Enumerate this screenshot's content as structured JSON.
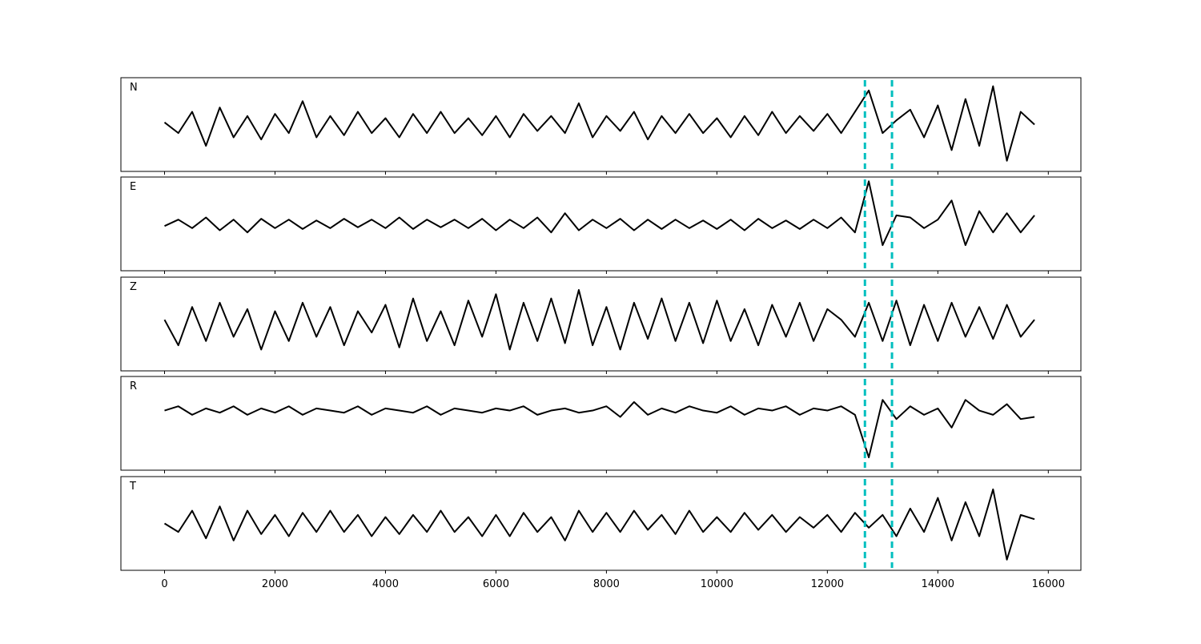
{
  "chart_data": [
    {
      "type": "line",
      "label": "N",
      "color": "#000000",
      "x": [
        0,
        250,
        500,
        750,
        1000,
        1250,
        1500,
        1750,
        2000,
        2250,
        2500,
        2750,
        3000,
        3250,
        3500,
        3750,
        4000,
        4250,
        4500,
        4750,
        5000,
        5250,
        5500,
        5750,
        6000,
        6250,
        6500,
        6750,
        7000,
        7250,
        7500,
        7750,
        8000,
        8250,
        8500,
        8750,
        9000,
        9250,
        9500,
        9750,
        10000,
        10250,
        10500,
        10750,
        11000,
        11250,
        11500,
        11750,
        12000,
        12250,
        12500,
        12750,
        13000,
        13250,
        13500,
        13750,
        14000,
        14250,
        14500,
        14750,
        15000,
        15250,
        15500,
        15750
      ],
      "values": [
        0.05,
        -0.2,
        0.3,
        -0.5,
        0.4,
        -0.3,
        0.2,
        -0.35,
        0.25,
        -0.2,
        0.55,
        -0.3,
        0.2,
        -0.25,
        0.3,
        -0.2,
        0.15,
        -0.3,
        0.25,
        -0.2,
        0.3,
        -0.2,
        0.15,
        -0.25,
        0.2,
        -0.3,
        0.25,
        -0.15,
        0.2,
        -0.2,
        0.5,
        -0.3,
        0.2,
        -0.15,
        0.3,
        -0.35,
        0.2,
        -0.2,
        0.25,
        -0.2,
        0.15,
        -0.3,
        0.2,
        -0.25,
        0.3,
        -0.2,
        0.2,
        -0.15,
        0.25,
        -0.2,
        0.3,
        0.8,
        -0.2,
        0.1,
        0.35,
        -0.3,
        0.45,
        -0.6,
        0.6,
        -0.5,
        0.9,
        -0.85,
        0.3,
        0.0
      ],
      "xlim": [
        -790,
        16590
      ],
      "ylim": [
        -1.1,
        1.1
      ],
      "vlines": [
        12680,
        13170
      ],
      "vline_color": "#00bfbf"
    },
    {
      "type": "line",
      "label": "E",
      "color": "#000000",
      "x": [
        0,
        250,
        500,
        750,
        1000,
        1250,
        1500,
        1750,
        2000,
        2250,
        2500,
        2750,
        3000,
        3250,
        3500,
        3750,
        4000,
        4250,
        4500,
        4750,
        5000,
        5250,
        5500,
        5750,
        6000,
        6250,
        6500,
        6750,
        7000,
        7250,
        7500,
        7750,
        8000,
        8250,
        8500,
        8750,
        9000,
        9250,
        9500,
        9750,
        10000,
        10250,
        10500,
        10750,
        11000,
        11250,
        11500,
        11750,
        12000,
        12250,
        12500,
        12750,
        13000,
        13250,
        13500,
        13750,
        14000,
        14250,
        14500,
        14750,
        15000,
        15250,
        15500,
        15750
      ],
      "values": [
        -0.05,
        0.1,
        -0.1,
        0.15,
        -0.15,
        0.1,
        -0.2,
        0.12,
        -0.1,
        0.1,
        -0.12,
        0.08,
        -0.1,
        0.12,
        -0.08,
        0.1,
        -0.1,
        0.15,
        -0.12,
        0.1,
        -0.08,
        0.1,
        -0.1,
        0.12,
        -0.15,
        0.1,
        -0.1,
        0.15,
        -0.2,
        0.25,
        -0.15,
        0.1,
        -0.1,
        0.12,
        -0.15,
        0.1,
        -0.12,
        0.1,
        -0.1,
        0.08,
        -0.12,
        0.1,
        -0.15,
        0.12,
        -0.1,
        0.08,
        -0.12,
        0.1,
        -0.1,
        0.15,
        -0.2,
        1.0,
        -0.5,
        0.2,
        0.15,
        -0.1,
        0.1,
        0.55,
        -0.5,
        0.3,
        -0.2,
        0.25,
        -0.2,
        0.2
      ],
      "xlim": [
        -790,
        16590
      ],
      "ylim": [
        -1.1,
        1.1
      ],
      "vlines": [
        12680,
        13170
      ],
      "vline_color": "#00bfbf"
    },
    {
      "type": "line",
      "label": "Z",
      "color": "#000000",
      "x": [
        0,
        250,
        500,
        750,
        1000,
        1250,
        1500,
        1750,
        2000,
        2250,
        2500,
        2750,
        3000,
        3250,
        3500,
        3750,
        4000,
        4250,
        4500,
        4750,
        5000,
        5250,
        5500,
        5750,
        6000,
        6250,
        6500,
        6750,
        7000,
        7250,
        7500,
        7750,
        8000,
        8250,
        8500,
        8750,
        9000,
        9250,
        9500,
        9750,
        10000,
        10250,
        10500,
        10750,
        11000,
        11250,
        11500,
        11750,
        12000,
        12250,
        12500,
        12750,
        13000,
        13250,
        13500,
        13750,
        14000,
        14250,
        14500,
        14750,
        15000,
        15250,
        15500,
        15750
      ],
      "values": [
        0.1,
        -0.5,
        0.4,
        -0.4,
        0.5,
        -0.3,
        0.35,
        -0.6,
        0.3,
        -0.4,
        0.5,
        -0.3,
        0.4,
        -0.5,
        0.3,
        -0.2,
        0.45,
        -0.55,
        0.6,
        -0.4,
        0.3,
        -0.5,
        0.55,
        -0.3,
        0.7,
        -0.6,
        0.5,
        -0.4,
        0.6,
        -0.45,
        0.8,
        -0.5,
        0.4,
        -0.6,
        0.5,
        -0.35,
        0.6,
        -0.4,
        0.5,
        -0.45,
        0.55,
        -0.4,
        0.35,
        -0.5,
        0.45,
        -0.3,
        0.5,
        -0.4,
        0.35,
        0.1,
        -0.3,
        0.5,
        -0.4,
        0.55,
        -0.5,
        0.45,
        -0.4,
        0.5,
        -0.3,
        0.4,
        -0.35,
        0.45,
        -0.3,
        0.1
      ],
      "xlim": [
        -790,
        16590
      ],
      "ylim": [
        -1.1,
        1.1
      ],
      "vlines": [
        12680,
        13170
      ],
      "vline_color": "#00bfbf"
    },
    {
      "type": "line",
      "label": "R",
      "color": "#000000",
      "x": [
        0,
        250,
        500,
        750,
        1000,
        1250,
        1500,
        1750,
        2000,
        2250,
        2500,
        2750,
        3000,
        3250,
        3500,
        3750,
        4000,
        4250,
        4500,
        4750,
        5000,
        5250,
        5500,
        5750,
        6000,
        6250,
        6500,
        6750,
        7000,
        7250,
        7500,
        7750,
        8000,
        8250,
        8500,
        8750,
        9000,
        9250,
        9500,
        9750,
        10000,
        10250,
        10500,
        10750,
        11000,
        11250,
        11500,
        11750,
        12000,
        12250,
        12500,
        12750,
        13000,
        13250,
        13500,
        13750,
        14000,
        14250,
        14500,
        14750,
        15000,
        15250,
        15500,
        15750
      ],
      "values": [
        0.3,
        0.4,
        0.2,
        0.35,
        0.25,
        0.4,
        0.2,
        0.35,
        0.25,
        0.4,
        0.2,
        0.35,
        0.3,
        0.25,
        0.4,
        0.2,
        0.35,
        0.3,
        0.25,
        0.4,
        0.2,
        0.35,
        0.3,
        0.25,
        0.35,
        0.3,
        0.4,
        0.2,
        0.3,
        0.35,
        0.25,
        0.3,
        0.4,
        0.15,
        0.5,
        0.2,
        0.35,
        0.25,
        0.4,
        0.3,
        0.25,
        0.4,
        0.2,
        0.35,
        0.3,
        0.4,
        0.2,
        0.35,
        0.3,
        0.4,
        0.2,
        -0.8,
        0.55,
        0.1,
        0.4,
        0.2,
        0.35,
        -0.1,
        0.55,
        0.3,
        0.2,
        0.45,
        0.1,
        0.15
      ],
      "xlim": [
        -790,
        16590
      ],
      "ylim": [
        -1.1,
        1.1
      ],
      "vlines": [
        12680,
        13170
      ],
      "vline_color": "#00bfbf"
    },
    {
      "type": "line",
      "label": "T",
      "color": "#000000",
      "x": [
        0,
        250,
        500,
        750,
        1000,
        1250,
        1500,
        1750,
        2000,
        2250,
        2500,
        2750,
        3000,
        3250,
        3500,
        3750,
        4000,
        4250,
        4500,
        4750,
        5000,
        5250,
        5500,
        5750,
        6000,
        6250,
        6500,
        6750,
        7000,
        7250,
        7500,
        7750,
        8000,
        8250,
        8500,
        8750,
        9000,
        9250,
        9500,
        9750,
        10000,
        10250,
        10500,
        10750,
        11000,
        11250,
        11500,
        11750,
        12000,
        12250,
        12500,
        12750,
        13000,
        13250,
        13500,
        13750,
        14000,
        14250,
        14500,
        14750,
        15000,
        15250,
        15500,
        15750
      ],
      "values": [
        0.0,
        -0.2,
        0.3,
        -0.35,
        0.4,
        -0.4,
        0.3,
        -0.25,
        0.2,
        -0.3,
        0.25,
        -0.2,
        0.3,
        -0.2,
        0.2,
        -0.3,
        0.15,
        -0.25,
        0.2,
        -0.2,
        0.3,
        -0.2,
        0.15,
        -0.3,
        0.2,
        -0.3,
        0.25,
        -0.2,
        0.15,
        -0.4,
        0.3,
        -0.2,
        0.25,
        -0.2,
        0.3,
        -0.15,
        0.2,
        -0.25,
        0.3,
        -0.2,
        0.15,
        -0.2,
        0.25,
        -0.15,
        0.2,
        -0.2,
        0.15,
        -0.1,
        0.2,
        -0.2,
        0.25,
        -0.1,
        0.2,
        -0.3,
        0.35,
        -0.2,
        0.6,
        -0.4,
        0.5,
        -0.3,
        0.8,
        -0.85,
        0.2,
        0.1
      ],
      "xlim": [
        -790,
        16590
      ],
      "ylim": [
        -1.1,
        1.1
      ],
      "vlines": [
        12680,
        13170
      ],
      "vline_color": "#00bfbf",
      "xticks": [
        0,
        2000,
        4000,
        6000,
        8000,
        10000,
        12000,
        14000,
        16000
      ]
    }
  ]
}
